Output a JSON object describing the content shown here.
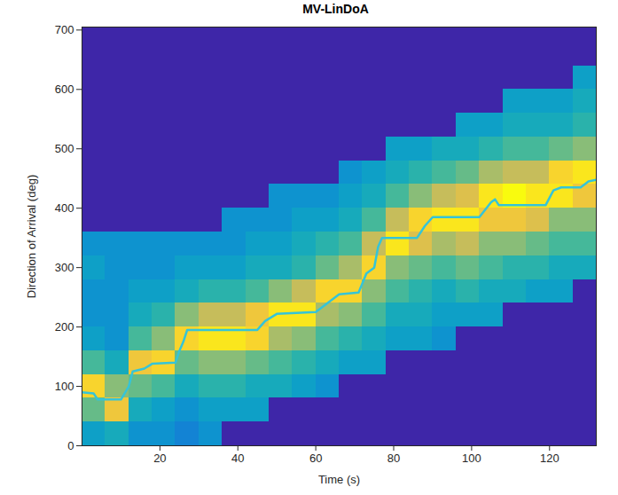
{
  "chart_data": {
    "type": "heatmap",
    "title": "MV-LinDoA",
    "x_label": "Time (s)",
    "y_label": "Direction of Arrival (deg)",
    "xlim": [
      0,
      132
    ],
    "ylim": [
      0,
      705
    ],
    "xticks": [
      20,
      40,
      60,
      80,
      100,
      120
    ],
    "yticks": [
      0,
      100,
      200,
      300,
      400,
      500,
      600,
      700
    ],
    "cells": {
      "x_edges": [
        0,
        6,
        12,
        18,
        24,
        30,
        36,
        42,
        48,
        54,
        60,
        66,
        72,
        78,
        84,
        90,
        96,
        102,
        108,
        114,
        120,
        126,
        132
      ],
      "y_edges": [
        0,
        40,
        80,
        120,
        160,
        200,
        240,
        280,
        320,
        360,
        400,
        440,
        480,
        520,
        560,
        600,
        640,
        680,
        720
      ],
      "values": [
        [
          0.35,
          0.55,
          0.85,
          0.5,
          0.35,
          0.3,
          0.3,
          0.35,
          0.3,
          0,
          0,
          0,
          0,
          0,
          0,
          0,
          0,
          0
        ],
        [
          0.4,
          0.8,
          0.6,
          0.4,
          0.3,
          0.3,
          0.3,
          0.3,
          0.3,
          0,
          0,
          0,
          0,
          0,
          0,
          0,
          0,
          0
        ],
        [
          0.3,
          0.4,
          0.55,
          0.8,
          0.5,
          0.4,
          0.35,
          0.3,
          0.3,
          0,
          0,
          0,
          0,
          0,
          0,
          0,
          0,
          0
        ],
        [
          0.3,
          0.35,
          0.5,
          0.85,
          0.6,
          0.45,
          0.35,
          0.3,
          0.3,
          0,
          0,
          0,
          0,
          0,
          0,
          0,
          0,
          0
        ],
        [
          0.25,
          0.3,
          0.4,
          0.55,
          0.85,
          0.6,
          0.4,
          0.35,
          0.3,
          0,
          0,
          0,
          0,
          0,
          0,
          0,
          0,
          0
        ],
        [
          0.3,
          0.35,
          0.45,
          0.6,
          0.9,
          0.7,
          0.45,
          0.35,
          0.3,
          0,
          0,
          0,
          0,
          0,
          0,
          0,
          0,
          0
        ],
        [
          0,
          0.35,
          0.45,
          0.6,
          0.9,
          0.7,
          0.45,
          0.35,
          0.3,
          0.3,
          0,
          0,
          0,
          0,
          0,
          0,
          0,
          0
        ],
        [
          0,
          0.35,
          0.4,
          0.55,
          0.85,
          0.8,
          0.5,
          0.4,
          0.35,
          0.3,
          0,
          0,
          0,
          0,
          0,
          0,
          0,
          0
        ],
        [
          0,
          0,
          0.4,
          0.5,
          0.65,
          0.9,
          0.6,
          0.4,
          0.35,
          0.3,
          0.3,
          0,
          0,
          0,
          0,
          0,
          0,
          0
        ],
        [
          0,
          0,
          0.35,
          0.45,
          0.6,
          0.9,
          0.7,
          0.45,
          0.4,
          0.35,
          0.3,
          0,
          0,
          0,
          0,
          0,
          0,
          0
        ],
        [
          0,
          0,
          0.3,
          0.4,
          0.5,
          0.65,
          0.85,
          0.55,
          0.45,
          0.35,
          0.3,
          0,
          0,
          0,
          0,
          0,
          0,
          0
        ],
        [
          0,
          0,
          0,
          0.35,
          0.45,
          0.6,
          0.85,
          0.65,
          0.5,
          0.4,
          0.35,
          0.3,
          0,
          0,
          0,
          0,
          0,
          0
        ],
        [
          0,
          0,
          0,
          0.35,
          0.4,
          0.5,
          0.6,
          0.85,
          0.7,
          0.5,
          0.4,
          0.35,
          0,
          0,
          0,
          0,
          0,
          0
        ],
        [
          0,
          0,
          0,
          0,
          0.35,
          0.4,
          0.5,
          0.6,
          0.9,
          0.7,
          0.5,
          0.4,
          0.35,
          0,
          0,
          0,
          0,
          0
        ],
        [
          0,
          0,
          0,
          0,
          0.35,
          0.4,
          0.45,
          0.55,
          0.75,
          0.85,
          0.6,
          0.45,
          0.35,
          0,
          0,
          0,
          0,
          0
        ],
        [
          0,
          0,
          0,
          0,
          0.3,
          0.35,
          0.4,
          0.5,
          0.65,
          0.9,
          0.7,
          0.5,
          0.4,
          0,
          0,
          0,
          0,
          0
        ],
        [
          0,
          0,
          0,
          0,
          0,
          0.35,
          0.45,
          0.55,
          0.7,
          0.9,
          0.75,
          0.55,
          0.4,
          0.35,
          0,
          0,
          0,
          0
        ],
        [
          0,
          0,
          0,
          0,
          0,
          0.35,
          0.4,
          0.5,
          0.6,
          0.8,
          0.9,
          0.65,
          0.45,
          0.35,
          0,
          0,
          0,
          0
        ],
        [
          0,
          0,
          0,
          0,
          0,
          0,
          0.4,
          0.45,
          0.6,
          0.8,
          0.95,
          0.7,
          0.5,
          0.4,
          0.35,
          0,
          0,
          0
        ],
        [
          0,
          0,
          0,
          0,
          0,
          0,
          0.35,
          0.45,
          0.55,
          0.75,
          0.9,
          0.7,
          0.5,
          0.4,
          0.35,
          0,
          0,
          0
        ],
        [
          0,
          0,
          0,
          0,
          0,
          0,
          0.35,
          0.4,
          0.5,
          0.6,
          0.9,
          0.85,
          0.55,
          0.4,
          0.35,
          0,
          0,
          0
        ],
        [
          0,
          0,
          0,
          0,
          0,
          0,
          0,
          0.4,
          0.5,
          0.6,
          0.8,
          0.9,
          0.6,
          0.45,
          0.4,
          0.35,
          0,
          0
        ]
      ]
    },
    "track": {
      "type": "line",
      "color": "#35c4d8",
      "x": [
        0,
        3,
        4,
        10,
        12,
        13,
        16,
        18,
        24,
        25,
        26,
        27,
        45,
        47,
        50,
        60,
        63,
        66,
        71,
        73,
        75,
        76,
        77,
        86,
        88,
        90,
        102,
        105,
        106,
        107,
        119,
        121,
        123,
        128,
        130,
        132
      ],
      "values": [
        90,
        88,
        78,
        78,
        100,
        125,
        130,
        138,
        140,
        160,
        175,
        195,
        195,
        210,
        222,
        225,
        240,
        255,
        258,
        290,
        300,
        335,
        350,
        350,
        370,
        385,
        385,
        410,
        415,
        405,
        405,
        430,
        435,
        435,
        445,
        448
      ]
    }
  }
}
